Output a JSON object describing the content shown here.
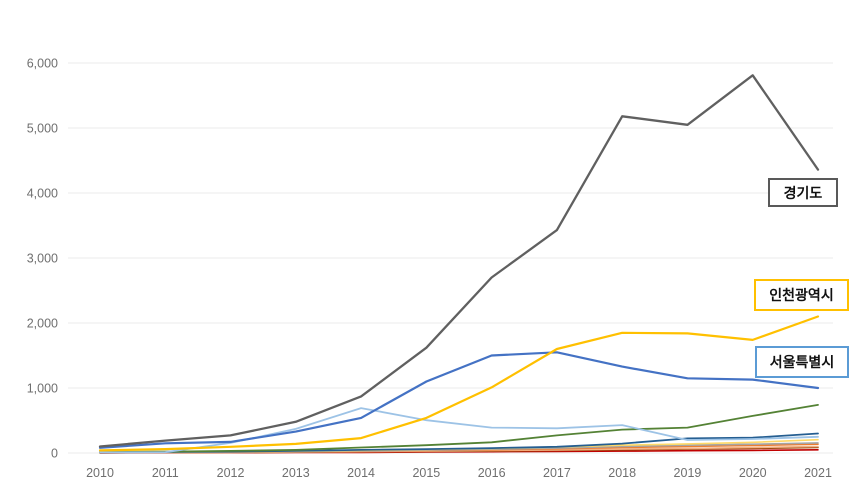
{
  "page": {
    "background": "#ffffff",
    "title": ""
  },
  "annotations": [
    {
      "id": "gyeonggi",
      "label": "경기도",
      "border_color": "#595959"
    },
    {
      "id": "incheon",
      "label": "인천광역시",
      "border_color": "#FFC000"
    },
    {
      "id": "seoul",
      "label": "서울특별시",
      "border_color": "#5B9BD5"
    }
  ],
  "chart_data": {
    "type": "line",
    "title": "",
    "xlabel": "",
    "ylabel": "",
    "x": [
      "2010",
      "2011",
      "2012",
      "2013",
      "2014",
      "2015",
      "2016",
      "2017",
      "2018",
      "2019",
      "2020",
      "2021"
    ],
    "ylim": [
      0,
      6000
    ],
    "grid": true,
    "legend_position": "none (direct callout labels on right side)",
    "y_ticks": [
      {
        "value": 0,
        "label": "0"
      },
      {
        "value": 1000,
        "label": "1,000"
      },
      {
        "value": 2000,
        "label": "2,000"
      },
      {
        "value": 3000,
        "label": "3,000"
      },
      {
        "value": 4000,
        "label": "4,000"
      },
      {
        "value": 5000,
        "label": "5,000"
      },
      {
        "value": 6000,
        "label": "6,000"
      }
    ],
    "series": [
      {
        "id": "minor-red",
        "label": "",
        "color": "#C00000",
        "width": 1.6,
        "values": [
          2,
          3,
          5,
          8,
          10,
          15,
          20,
          25,
          30,
          35,
          40,
          50
        ]
      },
      {
        "id": "minor-brown",
        "label": "",
        "color": "#9E480E",
        "width": 1.6,
        "values": [
          3,
          5,
          8,
          12,
          18,
          25,
          30,
          40,
          50,
          60,
          70,
          85
        ]
      },
      {
        "id": "minor-tan",
        "label": "",
        "color": "#F4B183",
        "width": 1.6,
        "values": [
          4,
          6,
          10,
          15,
          22,
          30,
          38,
          48,
          60,
          70,
          85,
          100
        ]
      },
      {
        "id": "minor-orange",
        "label": "",
        "color": "#ED7D31",
        "width": 1.6,
        "values": [
          5,
          8,
          12,
          20,
          30,
          40,
          50,
          65,
          85,
          100,
          115,
          135
        ]
      },
      {
        "id": "minor-gray",
        "label": "",
        "color": "#A5A5A5",
        "width": 1.6,
        "values": [
          6,
          10,
          15,
          22,
          32,
          45,
          58,
          75,
          100,
          120,
          135,
          155
        ]
      },
      {
        "id": "minor-light-gold",
        "label": "",
        "color": "#FFD966",
        "width": 1.6,
        "values": [
          8,
          12,
          18,
          28,
          40,
          55,
          70,
          90,
          120,
          140,
          165,
          205
        ]
      },
      {
        "id": "minor-steel-blue",
        "label": "",
        "color": "#255E91",
        "width": 1.8,
        "values": [
          10,
          15,
          22,
          32,
          48,
          60,
          75,
          95,
          145,
          225,
          235,
          300
        ]
      },
      {
        "id": "minor-dark-green",
        "label": "",
        "color": "#548235",
        "width": 1.8,
        "values": [
          15,
          22,
          32,
          48,
          85,
          120,
          165,
          270,
          360,
          390,
          570,
          740
        ]
      },
      {
        "id": "minor-light-blue",
        "label": "",
        "color": "#9DC3E6",
        "width": 1.8,
        "values": [
          10,
          12,
          155,
          370,
          690,
          505,
          390,
          380,
          430,
          200,
          215,
          250
        ]
      },
      {
        "id": "seoul",
        "label": "서울특별시",
        "color": "#4472C4",
        "width": 2.2,
        "values": [
          80,
          150,
          170,
          330,
          540,
          1100,
          1500,
          1550,
          1330,
          1150,
          1130,
          1000
        ]
      },
      {
        "id": "incheon",
        "label": "인천광역시",
        "color": "#FFC000",
        "width": 2.2,
        "values": [
          40,
          60,
          95,
          140,
          230,
          540,
          1010,
          1600,
          1850,
          1840,
          1740,
          2100
        ]
      },
      {
        "id": "gyeonggi",
        "label": "경기도",
        "color": "#606060",
        "width": 2.3,
        "values": [
          100,
          190,
          270,
          480,
          870,
          1620,
          2700,
          3430,
          5180,
          5050,
          5810,
          4360
        ]
      }
    ]
  }
}
